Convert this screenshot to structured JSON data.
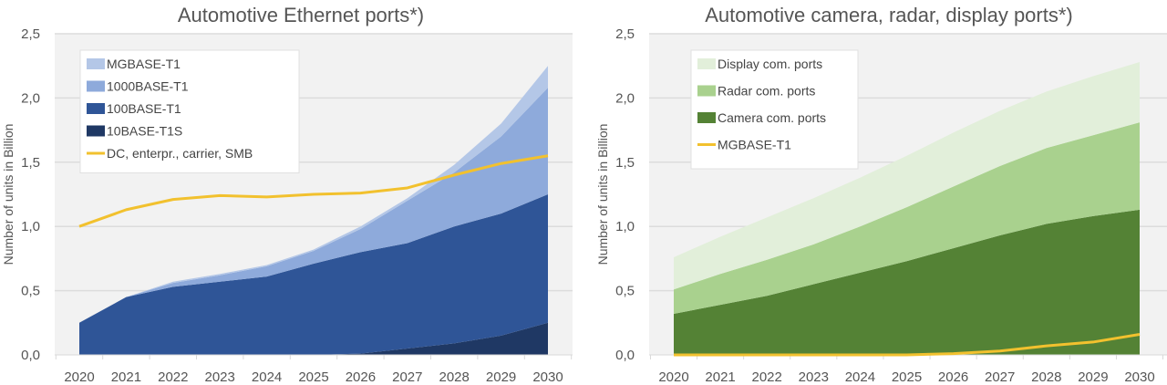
{
  "chart_data": [
    {
      "type": "area",
      "stacked": true,
      "title": "Automotive Ethernet ports*)",
      "xlabel": "",
      "ylabel": "Number of units in Billion",
      "ylim": [
        0,
        2.5
      ],
      "yticks": [
        "0,0",
        "0,5",
        "1,0",
        "1,5",
        "2,0",
        "2,5"
      ],
      "grid": true,
      "legend_position": "top-left",
      "x": [
        "2020",
        "2021",
        "2022",
        "2023",
        "2024",
        "2025",
        "2026",
        "2027",
        "2028",
        "2029",
        "2030"
      ],
      "series": [
        {
          "name": "10BASE-T1S",
          "color": "#1f3864",
          "kind": "area",
          "values": [
            0,
            0,
            0,
            0,
            0,
            0,
            0.01,
            0.05,
            0.09,
            0.15,
            0.25
          ]
        },
        {
          "name": "100BASE-T1",
          "color": "#2f5597",
          "kind": "area",
          "values": [
            0.25,
            0.45,
            0.53,
            0.57,
            0.61,
            0.71,
            0.79,
            0.82,
            0.91,
            0.95,
            1.0
          ]
        },
        {
          "name": "1000BASE-T1",
          "color": "#8eaadb",
          "kind": "area",
          "values": [
            0,
            0,
            0.03,
            0.05,
            0.08,
            0.1,
            0.18,
            0.33,
            0.42,
            0.6,
            0.83
          ]
        },
        {
          "name": "MGBASE-T1",
          "color": "#b4c7e7",
          "kind": "area",
          "values": [
            0,
            0,
            0.01,
            0.01,
            0.01,
            0.01,
            0.02,
            0.02,
            0.06,
            0.1,
            0.17
          ]
        },
        {
          "name": "DC, enterpr., carrier, SMB",
          "color": "#f2c12e",
          "kind": "line",
          "values": [
            1.0,
            1.13,
            1.21,
            1.24,
            1.23,
            1.25,
            1.26,
            1.3,
            1.4,
            1.49,
            1.55
          ]
        }
      ],
      "legend_order": [
        "MGBASE-T1",
        "1000BASE-T1",
        "100BASE-T1",
        "10BASE-T1S",
        "DC, enterpr., carrier, SMB"
      ]
    },
    {
      "type": "area",
      "stacked": true,
      "title": "Automotive camera, radar, display ports*)",
      "xlabel": "",
      "ylabel": "Number of units in Billion",
      "ylim": [
        0,
        2.5
      ],
      "yticks": [
        "0,0",
        "0,5",
        "1,0",
        "1,5",
        "2,0",
        "2,5"
      ],
      "grid": true,
      "legend_position": "top-left",
      "x": [
        "2020",
        "2021",
        "2022",
        "2023",
        "2024",
        "2025",
        "2026",
        "2027",
        "2028",
        "2029",
        "2030"
      ],
      "series": [
        {
          "name": "Camera com. ports",
          "color": "#548235",
          "kind": "area",
          "values": [
            0.32,
            0.39,
            0.46,
            0.55,
            0.64,
            0.73,
            0.83,
            0.93,
            1.02,
            1.08,
            1.13
          ]
        },
        {
          "name": "Radar com. ports",
          "color": "#a9d18e",
          "kind": "area",
          "values": [
            0.19,
            0.24,
            0.28,
            0.31,
            0.36,
            0.42,
            0.48,
            0.54,
            0.59,
            0.63,
            0.68
          ]
        },
        {
          "name": "Display com. ports",
          "color": "#e2efda",
          "kind": "area",
          "values": [
            0.25,
            0.29,
            0.33,
            0.36,
            0.38,
            0.4,
            0.42,
            0.43,
            0.44,
            0.46,
            0.47
          ]
        },
        {
          "name": "MGBASE-T1",
          "color": "#f2c12e",
          "kind": "line",
          "values": [
            0,
            0,
            0,
            0,
            0,
            0,
            0.01,
            0.03,
            0.07,
            0.1,
            0.16
          ]
        }
      ],
      "legend_order": [
        "Display com. ports",
        "Radar com. ports",
        "Camera com. ports",
        "MGBASE-T1"
      ]
    }
  ]
}
